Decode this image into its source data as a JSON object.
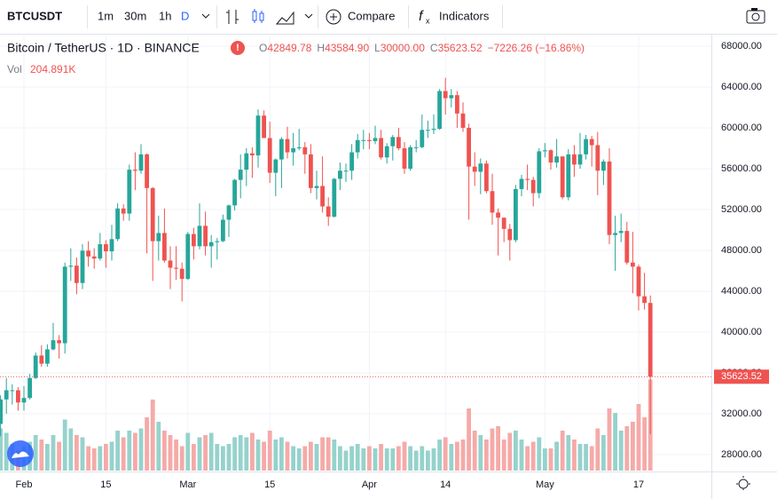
{
  "toolbar": {
    "symbol": "BTCUSDT",
    "intervals": [
      "1m",
      "30m",
      "1h",
      "D"
    ],
    "compare": "Compare",
    "indicators": "Indicators"
  },
  "legend": {
    "symbol": "Bitcoin / TetherUS · 1D · BINANCE",
    "ohlc": [
      {
        "key": "O",
        "value": "42849.78"
      },
      {
        "key": "H",
        "value": "43584.90"
      },
      {
        "key": "L",
        "value": "30000.00"
      },
      {
        "key": "C",
        "value": "35623.52"
      }
    ],
    "change": "−7226.26 (−16.86%)",
    "vol": "Vol",
    "vol_value": "204.891K"
  },
  "price_tag": "35623.52",
  "chart_data": {
    "type": "candlestick",
    "categories": [
      null,
      null,
      null,
      null,
      "Feb",
      null,
      null,
      null,
      null,
      null,
      null,
      null,
      null,
      null,
      null,
      null,
      null,
      null,
      "15",
      null,
      null,
      null,
      null,
      null,
      null,
      null,
      null,
      null,
      null,
      null,
      null,
      null,
      "Mar",
      null,
      null,
      null,
      null,
      null,
      null,
      null,
      null,
      null,
      null,
      null,
      null,
      null,
      "15",
      null,
      null,
      null,
      null,
      null,
      null,
      null,
      null,
      null,
      null,
      null,
      null,
      null,
      null,
      null,
      null,
      "Apr",
      null,
      null,
      null,
      null,
      null,
      null,
      null,
      null,
      null,
      null,
      null,
      null,
      "14",
      null,
      null,
      null,
      null,
      null,
      null,
      null,
      null,
      null,
      null,
      null,
      null,
      null,
      null,
      null,
      null,
      "May",
      null,
      null,
      null,
      null,
      null,
      null,
      null,
      null,
      null,
      null,
      null,
      null,
      null,
      null,
      null,
      "17",
      null,
      null
    ],
    "open": [
      31000,
      33400,
      34300,
      34300,
      33100,
      33540,
      35500,
      37700,
      36900,
      38300,
      39200,
      38900,
      46400,
      46500,
      44800,
      47970,
      47400,
      47200,
      48600,
      47900,
      49100,
      52100,
      51600,
      55900,
      55800,
      57400,
      54100,
      48900,
      49700,
      47000,
      46300,
      46200,
      45200,
      49600,
      48400,
      50400,
      48400,
      48800,
      48900,
      51000,
      52400,
      54900,
      55900,
      57500,
      57300,
      61200,
      59000,
      55600,
      56900,
      58900,
      57600,
      58000,
      58100,
      57400,
      54100,
      54300,
      52300,
      51300,
      55000,
      55800,
      55800,
      57600,
      58800,
      58800,
      58700,
      59000,
      57100,
      58200,
      59100,
      58000,
      56000,
      58100,
      58100,
      59800,
      59800,
      59900,
      63600,
      62900,
      63200,
      61400,
      60000,
      56200,
      55700,
      56500,
      53800,
      51700,
      51200,
      50100,
      49000,
      54000,
      55000,
      54900,
      53600,
      57700,
      57800,
      56600,
      57200,
      53200,
      57400,
      56400,
      57400,
      58900,
      58300,
      55800,
      56700,
      49500,
      49700,
      49900,
      46800,
      46400,
      43500,
      42849.78
    ],
    "high": [
      33800,
      35500,
      34900,
      34600,
      34700,
      35900,
      38000,
      38700,
      38800,
      40900,
      39700,
      46800,
      48200,
      47300,
      48600,
      48900,
      48200,
      49700,
      49000,
      50500,
      52600,
      52500,
      56400,
      57600,
      58400,
      57500,
      54200,
      51400,
      52100,
      48400,
      48400,
      46800,
      49800,
      50200,
      52600,
      51800,
      49500,
      49200,
      51500,
      52500,
      55000,
      57400,
      58000,
      58100,
      61800,
      61700,
      60600,
      57000,
      59100,
      60100,
      59500,
      59900,
      58600,
      58400,
      55800,
      57200,
      53200,
      55100,
      56600,
      56500,
      58400,
      59400,
      59800,
      59500,
      60200,
      59800,
      58500,
      59300,
      60000,
      58600,
      58300,
      58800,
      61300,
      60700,
      61300,
      63800,
      64900,
      63800,
      63600,
      62500,
      60400,
      57600,
      57000,
      56800,
      55500,
      52100,
      51200,
      50600,
      54400,
      55400,
      56400,
      55200,
      58000,
      58500,
      57900,
      58900,
      57200,
      57900,
      58300,
      59500,
      59300,
      59200,
      59600,
      56900,
      58000,
      51400,
      51600,
      50800,
      49800,
      46600,
      45800,
      43584.9
    ],
    "low": [
      29800,
      32000,
      32900,
      32300,
      32300,
      33400,
      35400,
      36600,
      36600,
      38200,
      37400,
      37900,
      45000,
      43700,
      44200,
      46400,
      46200,
      47000,
      46300,
      47000,
      48900,
      50900,
      50900,
      53900,
      55500,
      47700,
      45000,
      47000,
      46800,
      44200,
      45100,
      43000,
      45100,
      47100,
      48100,
      47500,
      46300,
      47100,
      48800,
      49300,
      51900,
      53100,
      54300,
      55100,
      56100,
      59000,
      54600,
      53300,
      54100,
      57000,
      56300,
      57800,
      55500,
      53600,
      53000,
      51700,
      50400,
      51200,
      53900,
      54700,
      54900,
      57000,
      57900,
      57900,
      58400,
      56900,
      56500,
      56800,
      57800,
      55500,
      55800,
      57600,
      58000,
      59000,
      59400,
      59800,
      61300,
      62000,
      60000,
      59600,
      51000,
      54300,
      53500,
      53600,
      50500,
      47500,
      48800,
      47000,
      48800,
      53300,
      53900,
      52300,
      53100,
      57100,
      55900,
      56100,
      53000,
      52900,
      55200,
      56000,
      56900,
      56200,
      53400,
      54400,
      48600,
      46000,
      48800,
      46600,
      43800,
      42100,
      42200,
      30000
    ],
    "close": [
      33400,
      34300,
      34300,
      33100,
      33540,
      35500,
      37700,
      36900,
      38300,
      39200,
      38900,
      46400,
      46500,
      44800,
      47970,
      47400,
      47200,
      48600,
      47900,
      49100,
      52100,
      51600,
      55900,
      55800,
      57400,
      54100,
      48900,
      49700,
      47000,
      46300,
      46200,
      45200,
      49600,
      48400,
      50400,
      48400,
      48800,
      48900,
      51000,
      52400,
      54900,
      55900,
      57500,
      57300,
      61200,
      59000,
      55600,
      56900,
      58900,
      57600,
      58000,
      58100,
      57400,
      54100,
      54300,
      52300,
      51300,
      55000,
      55800,
      55800,
      57600,
      58800,
      58800,
      58700,
      59000,
      57100,
      58200,
      59100,
      58000,
      56000,
      58100,
      58100,
      59800,
      59800,
      59900,
      63600,
      62900,
      63200,
      61400,
      60000,
      56200,
      55700,
      56500,
      53800,
      51700,
      51200,
      50100,
      49000,
      54000,
      55000,
      54900,
      53600,
      57700,
      57800,
      56600,
      57200,
      53200,
      57400,
      56400,
      57400,
      58900,
      58300,
      55800,
      56700,
      49500,
      49700,
      49900,
      46800,
      46400,
      43500,
      42849.78,
      35623.52
    ],
    "volume": [
      95,
      85,
      60,
      45,
      55,
      65,
      80,
      70,
      60,
      80,
      65,
      115,
      95,
      80,
      75,
      55,
      50,
      55,
      60,
      65,
      90,
      75,
      90,
      85,
      95,
      120,
      160,
      110,
      90,
      80,
      70,
      55,
      85,
      60,
      75,
      80,
      85,
      60,
      55,
      60,
      75,
      80,
      75,
      85,
      70,
      65,
      90,
      70,
      75,
      65,
      55,
      50,
      55,
      65,
      60,
      75,
      75,
      70,
      55,
      45,
      55,
      60,
      50,
      55,
      50,
      60,
      50,
      50,
      55,
      65,
      55,
      45,
      55,
      45,
      50,
      70,
      75,
      60,
      65,
      70,
      140,
      90,
      80,
      70,
      95,
      100,
      70,
      85,
      90,
      70,
      55,
      65,
      75,
      50,
      50,
      65,
      90,
      80,
      70,
      60,
      60,
      55,
      95,
      80,
      140,
      130,
      90,
      100,
      110,
      150,
      120,
      204.891
    ],
    "volume_lim": [
      0,
      440
    ],
    "ylim": [
      26430,
      69040
    ],
    "yticks": [
      {
        "value": 28000,
        "label": "28000.00"
      },
      {
        "value": 32000,
        "label": "32000.00"
      },
      {
        "value": 36000,
        "label": "36000.00"
      },
      {
        "value": 40000,
        "label": "40000.00"
      },
      {
        "value": 44000,
        "label": "44000.00"
      },
      {
        "value": 48000,
        "label": "48000.00"
      },
      {
        "value": 52000,
        "label": "52000.00"
      },
      {
        "value": 56000,
        "label": "56000.00"
      },
      {
        "value": 60000,
        "label": "60000.00"
      },
      {
        "value": 64000,
        "label": "64000.00"
      },
      {
        "value": 68000,
        "label": "68000.00"
      }
    ],
    "grid": true,
    "up_color": "#26a69a",
    "down_color": "#ef5350",
    "volume_up_color": "#96d2cc",
    "volume_down_color": "#f5aaa8"
  }
}
